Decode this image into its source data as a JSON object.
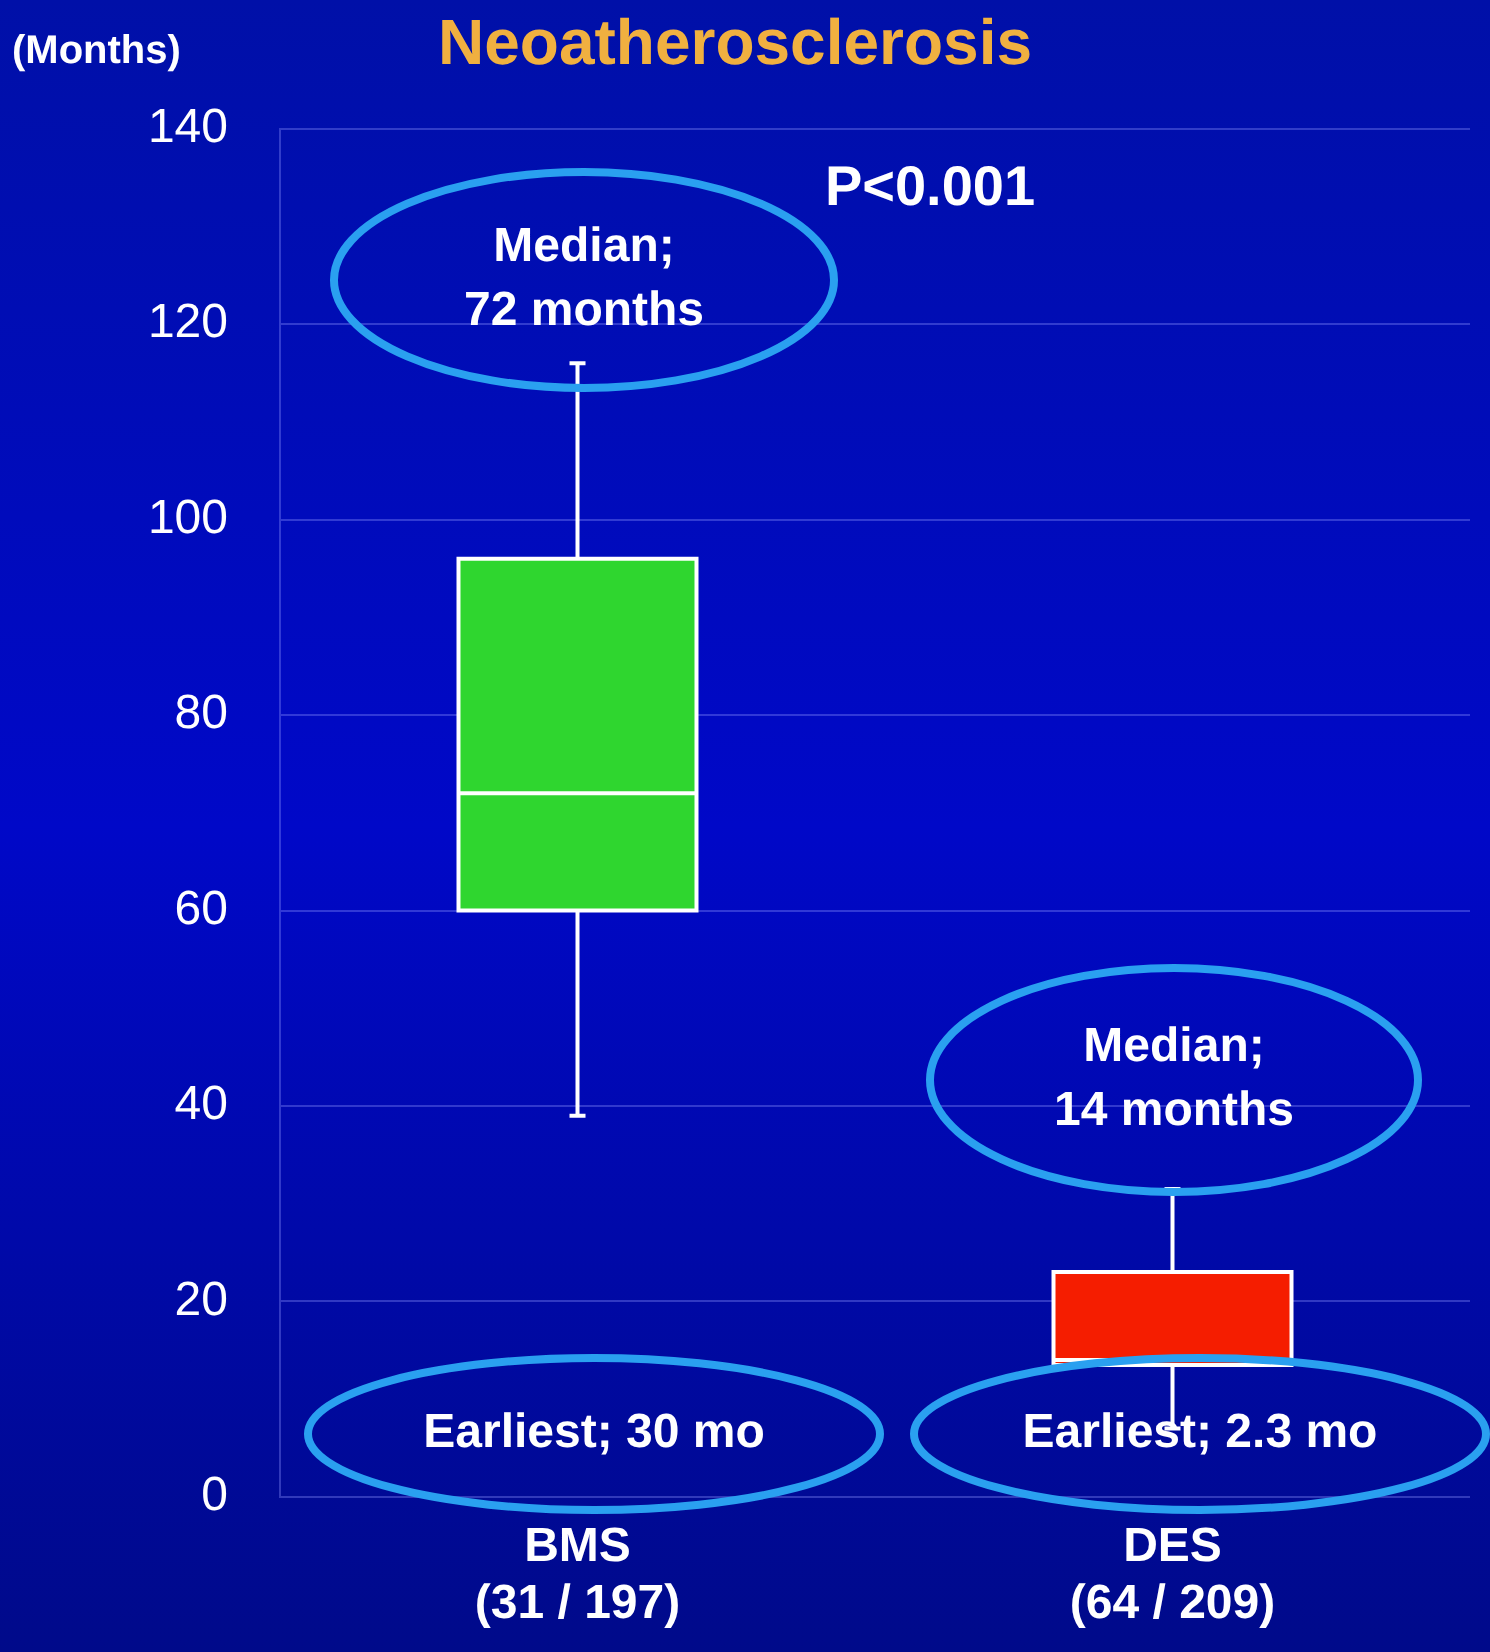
{
  "chart_data": {
    "type": "box",
    "title": "Neoatherosclerosis",
    "ylabel": "(Months)",
    "categories": [
      "BMS\n(31 / 197)",
      "DES\n(64 / 209)"
    ],
    "colors": [
      "#2fd62f",
      "#f51d00"
    ],
    "boxes": [
      {
        "low": 39,
        "q1": 60,
        "median": 72,
        "q3": 96,
        "high": 116
      },
      {
        "low": 7,
        "q1": 13.5,
        "median": 14,
        "q3": 23,
        "high": 31.5
      }
    ],
    "ylim": [
      0,
      140
    ],
    "yticks": [
      0,
      20,
      40,
      60,
      80,
      100,
      120,
      140
    ],
    "grid": "y",
    "annotations": [
      "P<0.001",
      "Median;\n72 months",
      "Median;\n14 months",
      "Earliest; 30 mo",
      "Earliest; 2.3 mo"
    ]
  }
}
